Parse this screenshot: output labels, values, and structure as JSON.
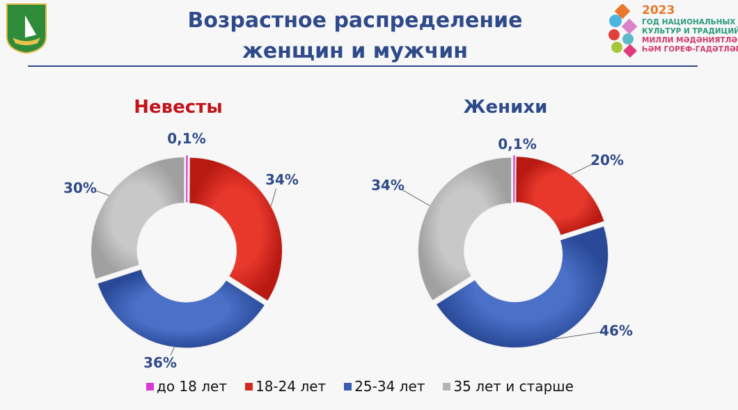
{
  "title": [
    "Возрастное распределение",
    "женщин и мужчин"
  ],
  "brand": {
    "year": "2023",
    "lines": [
      "ГОД НАЦИОНАЛЬНЫХ",
      "КУЛЬТУР И ТРАДИЦИЙ",
      "МИЛЛИ МӘДӘНИЯТЛӘР",
      "ҺӘМ ГОРЕФ-ГАДӘТЛӘР ЕЛЫ"
    ]
  },
  "colors": {
    "title": "#2f4a8a",
    "magenta": "#d63ad6",
    "red": "#d42a1e",
    "blue": "#3a5cb0",
    "gray": "#b4b4b4"
  },
  "chart_data": [
    {
      "type": "pie",
      "donut": true,
      "title": "Невесты",
      "title_color": "#c0141a",
      "categories": [
        "до 18 лет",
        "18-24 лет",
        "25-34 лет",
        "35 лет и старше"
      ],
      "values": [
        0.1,
        34,
        36,
        30
      ],
      "labels": [
        "0,1%",
        "34%",
        "36%",
        "30%"
      ]
    },
    {
      "type": "pie",
      "donut": true,
      "title": "Женихи",
      "title_color": "#2f4a8a",
      "categories": [
        "до 18 лет",
        "18-24 лет",
        "25-34 лет",
        "35 лет и старше"
      ],
      "values": [
        0.1,
        20,
        46,
        34
      ],
      "labels": [
        "0,1%",
        "20%",
        "46%",
        "34%"
      ]
    }
  ],
  "legend": [
    "до 18 лет",
    "18-24 лет",
    "25-34 лет",
    "35 лет и старше"
  ],
  "legend_position": "bottom"
}
